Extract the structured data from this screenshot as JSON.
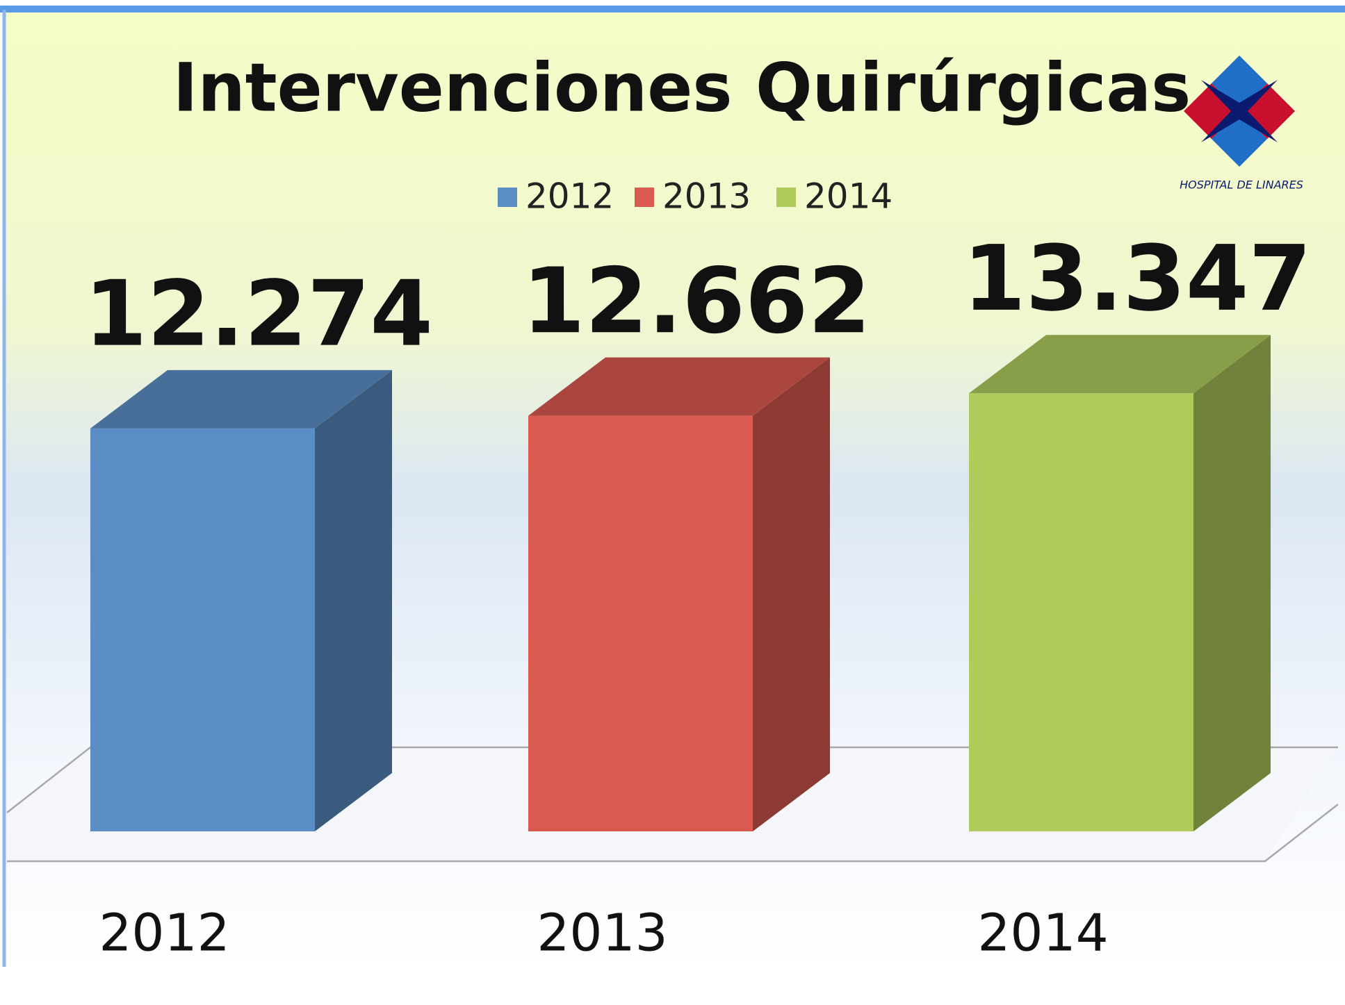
{
  "chart_data": {
    "type": "bar3d",
    "title": "Intervenciones Quirúrgicas",
    "categories": [
      "2012",
      "2013",
      "2014"
    ],
    "values": [
      12274,
      12662,
      13347
    ],
    "value_labels": [
      "12.274",
      "12.662",
      "13.347"
    ],
    "colors": [
      "#5b8ec4",
      "#db5a50",
      "#afcb5c"
    ],
    "legend": true
  },
  "logo": {
    "text": "HOSPITAL DE LINARES"
  }
}
